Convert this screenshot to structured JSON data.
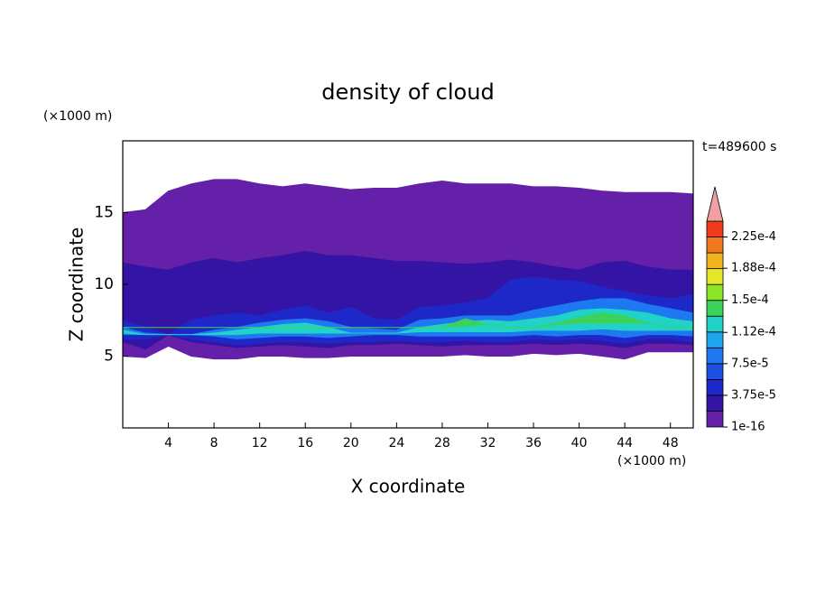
{
  "chart_data": {
    "type": "contour",
    "title": "density of cloud",
    "xlabel": "X coordinate",
    "ylabel": "Z coordinate",
    "x_unit": "(×1000 m)",
    "y_unit": "(×1000 m)",
    "annotation": "t=489600 s",
    "xlim": [
      0,
      50
    ],
    "ylim": [
      0,
      20
    ],
    "xticks": [
      4,
      8,
      12,
      16,
      20,
      24,
      28,
      32,
      36,
      40,
      44,
      48
    ],
    "yticks": [
      5,
      10,
      15
    ],
    "x": [
      0,
      2,
      4,
      6,
      8,
      10,
      12,
      14,
      16,
      18,
      20,
      22,
      24,
      26,
      28,
      30,
      32,
      34,
      36,
      38,
      40,
      42,
      44,
      46,
      48,
      50
    ],
    "regions": [
      {
        "level": 1e-16,
        "color": "#6420a8",
        "top": [
          15,
          15.2,
          16.5,
          17,
          17.3,
          17.3,
          17,
          16.8,
          17,
          16.8,
          16.6,
          16.7,
          16.7,
          17,
          17.2,
          17,
          17,
          17,
          16.8,
          16.8,
          16.7,
          16.5,
          16.4,
          16.4,
          16.4,
          16.3
        ],
        "bottom": [
          5,
          4.9,
          5.7,
          5,
          4.8,
          4.8,
          5,
          5,
          4.9,
          4.9,
          5,
          5,
          5,
          5,
          5,
          5.1,
          5,
          5,
          5.2,
          5.1,
          5.2,
          5,
          4.8,
          5.3,
          5.3,
          5.3
        ]
      },
      {
        "level": 1.875e-05,
        "color": "#3414a4",
        "top": [
          11.5,
          11.2,
          11,
          11.5,
          11.8,
          11.5,
          11.8,
          12,
          12.3,
          12,
          12,
          11.8,
          11.6,
          11.6,
          11.5,
          11.4,
          11.5,
          11.7,
          11.5,
          11.2,
          11,
          11.5,
          11.6,
          11.2,
          11,
          11
        ],
        "bottom": [
          6,
          5.5,
          6.5,
          6,
          5.8,
          5.6,
          5.7,
          5.8,
          5.7,
          5.6,
          5.8,
          5.8,
          5.9,
          5.8,
          5.7,
          5.8,
          5.8,
          5.8,
          5.9,
          5.8,
          5.9,
          5.8,
          5.6,
          5.9,
          5.9,
          5.8
        ]
      },
      {
        "level": 3.75e-05,
        "color": "#1e28c8",
        "top": [
          7.5,
          7,
          6.5,
          7.5,
          7.8,
          8,
          7.8,
          8.2,
          8.5,
          8,
          8.4,
          7.6,
          7.5,
          8.4,
          8.5,
          8.7,
          9,
          10.3,
          10.5,
          10.3,
          10.2,
          9.8,
          9.5,
          9.2,
          9,
          9.3
        ],
        "bottom": [
          6.2,
          6.2,
          6.5,
          6.2,
          6,
          5.8,
          5.9,
          6,
          6,
          5.9,
          6,
          6,
          6.1,
          6,
          6,
          6.1,
          6,
          6,
          6.2,
          6.1,
          6.2,
          6.1,
          5.9,
          6.2,
          6.2,
          6
        ]
      },
      {
        "level": 7.5e-05,
        "color": "#1e78f0",
        "top": [
          7,
          6.6,
          6.5,
          6.5,
          6.8,
          7,
          7.3,
          7.5,
          7.6,
          7.4,
          7,
          6.9,
          6.8,
          7.5,
          7.6,
          7.8,
          7.8,
          7.8,
          8.2,
          8.5,
          8.8,
          9,
          9,
          8.6,
          8.3,
          8
        ],
        "bottom": [
          6.5,
          6.5,
          6.5,
          6.5,
          6.4,
          6.2,
          6.3,
          6.4,
          6.4,
          6.3,
          6.4,
          6.5,
          6.5,
          6.4,
          6.4,
          6.4,
          6.4,
          6.4,
          6.5,
          6.4,
          6.5,
          6.5,
          6.3,
          6.5,
          6.5,
          6.4
        ]
      },
      {
        "level": 0.0001125,
        "color": "#20d2c8",
        "top": [
          6.8,
          6.5,
          6.5,
          6.5,
          6.6,
          6.8,
          7,
          7.2,
          7.3,
          7,
          6.6,
          6.6,
          6.6,
          7,
          7.2,
          7.4,
          7.5,
          7.4,
          7.6,
          7.8,
          8.2,
          8.3,
          8.2,
          8,
          7.6,
          7.4
        ],
        "bottom": [
          6.6,
          6.5,
          6.5,
          6.5,
          6.5,
          6.5,
          6.6,
          6.6,
          6.6,
          6.6,
          6.6,
          6.6,
          6.6,
          6.7,
          6.7,
          6.7,
          6.7,
          6.7,
          6.8,
          6.8,
          6.8,
          6.9,
          6.8,
          6.8,
          6.8,
          6.8
        ]
      },
      {
        "level": 0.00013125,
        "color": "#3cd25a",
        "top": [
          7,
          7,
          7,
          7,
          7,
          7,
          7,
          7,
          7,
          7,
          7,
          7,
          7,
          7,
          7,
          7.6,
          7.2,
          7,
          7,
          7.3,
          7.7,
          8,
          7.8,
          7.3,
          7,
          7
        ],
        "bottom": [
          7,
          7,
          7,
          7,
          7,
          7,
          7,
          7,
          7,
          7,
          7,
          7,
          7,
          7,
          7,
          7.1,
          7.2,
          7,
          7,
          7.2,
          7.3,
          7.3,
          7.3,
          7.3,
          7,
          7
        ]
      }
    ],
    "colorbar": {
      "clim": [
        0,
        0.00024375
      ],
      "levels": [
        1e-16,
        1.875e-05,
        3.75e-05,
        5.625e-05,
        7.5e-05,
        9.375e-05,
        0.0001125,
        0.00013125,
        0.00015,
        0.00016875,
        0.0001875,
        0.00020625,
        0.000225
      ],
      "colors": [
        "#6420a8",
        "#3414a4",
        "#1e28c8",
        "#1e50e6",
        "#1e78f0",
        "#1ea5f0",
        "#20d2c8",
        "#3cd25a",
        "#8ce628",
        "#e6e628",
        "#f0b41e",
        "#f0781e",
        "#f03c1e"
      ],
      "extend_color": "#f0a0a0",
      "ticks": [
        {
          "value": 1e-16,
          "label": "1e-16"
        },
        {
          "value": 3.75e-05,
          "label": "3.75e-5"
        },
        {
          "value": 7.5e-05,
          "label": "7.5e-5"
        },
        {
          "value": 0.000112,
          "label": "1.12e-4"
        },
        {
          "value": 0.00015,
          "label": "1.5e-4"
        },
        {
          "value": 0.000188,
          "label": "1.88e-4"
        },
        {
          "value": 0.000225,
          "label": "2.25e-4"
        }
      ]
    }
  }
}
